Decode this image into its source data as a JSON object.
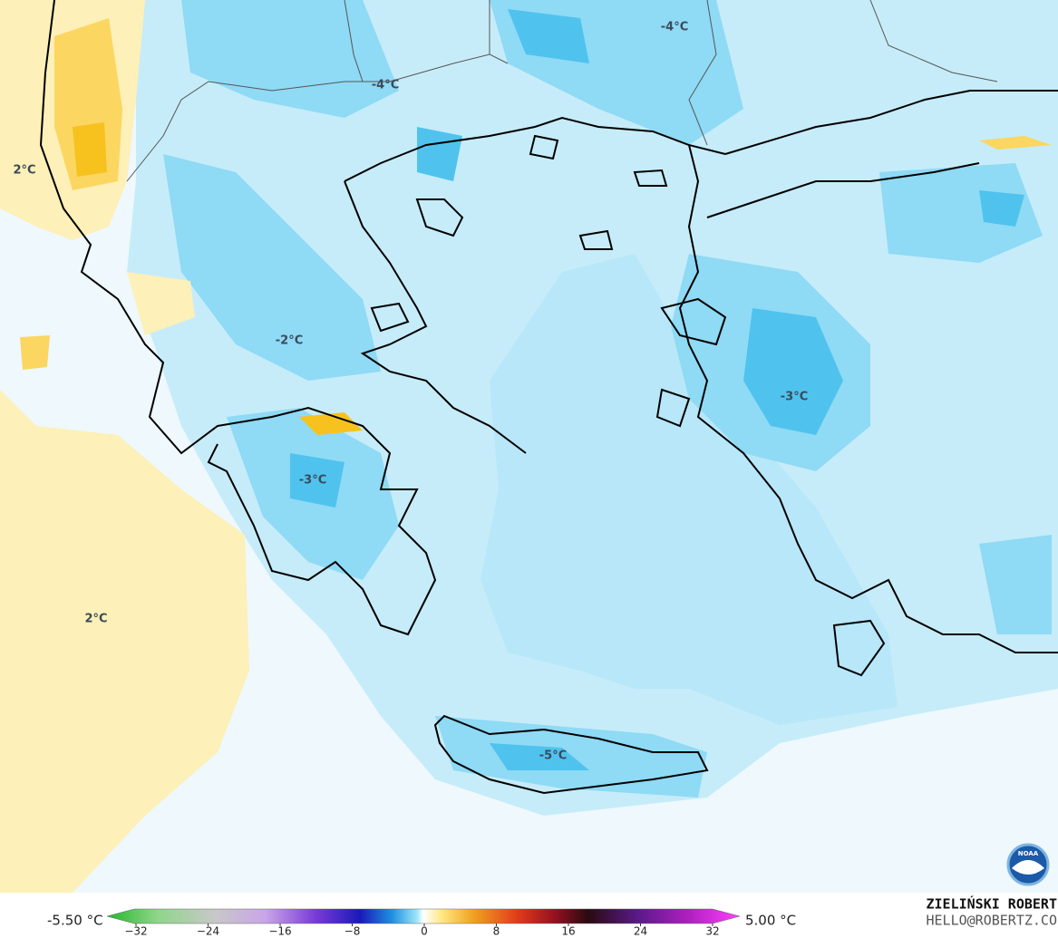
{
  "map": {
    "contour_labels": [
      "2°C",
      "-4°C",
      "-4°C",
      "-2°C",
      "-3°C",
      "-3°C",
      "2°C",
      "-5°C"
    ]
  },
  "colorbar": {
    "min_label": "-5.50 °C",
    "max_label": "5.00 °C",
    "ticks": [
      "−32",
      "−24",
      "−16",
      "−8",
      "0",
      "8",
      "16",
      "24",
      "32"
    ]
  },
  "credits": {
    "author": "ZIELIŃSKI ROBERT",
    "contact": "HELLO@ROBERTZ.CO",
    "logo": "NOAA"
  }
}
